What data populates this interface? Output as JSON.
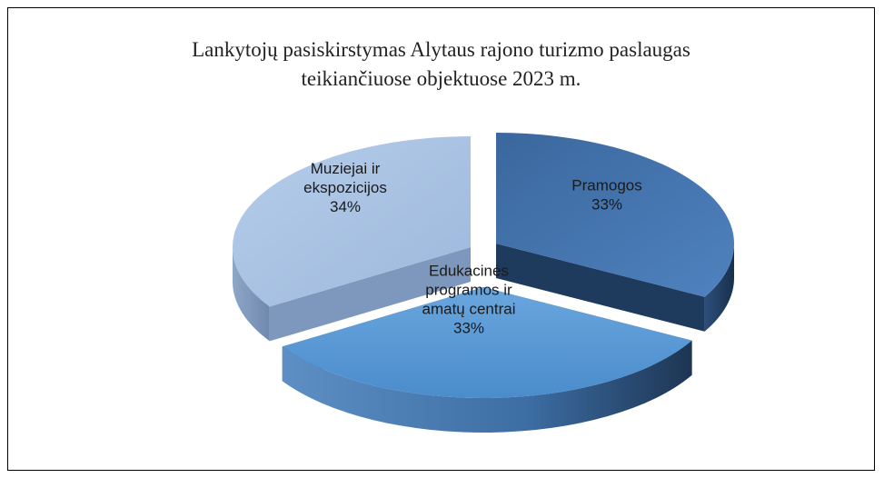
{
  "chart_data": {
    "type": "pie",
    "style": "3d-exploded",
    "title_lines": [
      "Lankytojų pasiskirstymas Alytaus rajono turizmo paslaugas",
      "teikiančiuose objektuose 2023 m."
    ],
    "slices": [
      {
        "label_lines": [
          "Pramogos"
        ],
        "value": 33,
        "value_label": "33%",
        "color": "#4a7ab5",
        "side_color": "#1e3a5c"
      },
      {
        "label_lines": [
          "Edukacinės",
          "programos ir",
          "amatų centrai"
        ],
        "value": 33,
        "value_label": "33%",
        "color": "#5b9bd5",
        "side_color": "#2f5e8e"
      },
      {
        "label_lines": [
          "Muziejai ir",
          "ekspozicijos"
        ],
        "value": 34,
        "value_label": "34%",
        "color": "#a9c2e2",
        "side_color": "#7e98bd"
      }
    ],
    "legend": "none"
  }
}
